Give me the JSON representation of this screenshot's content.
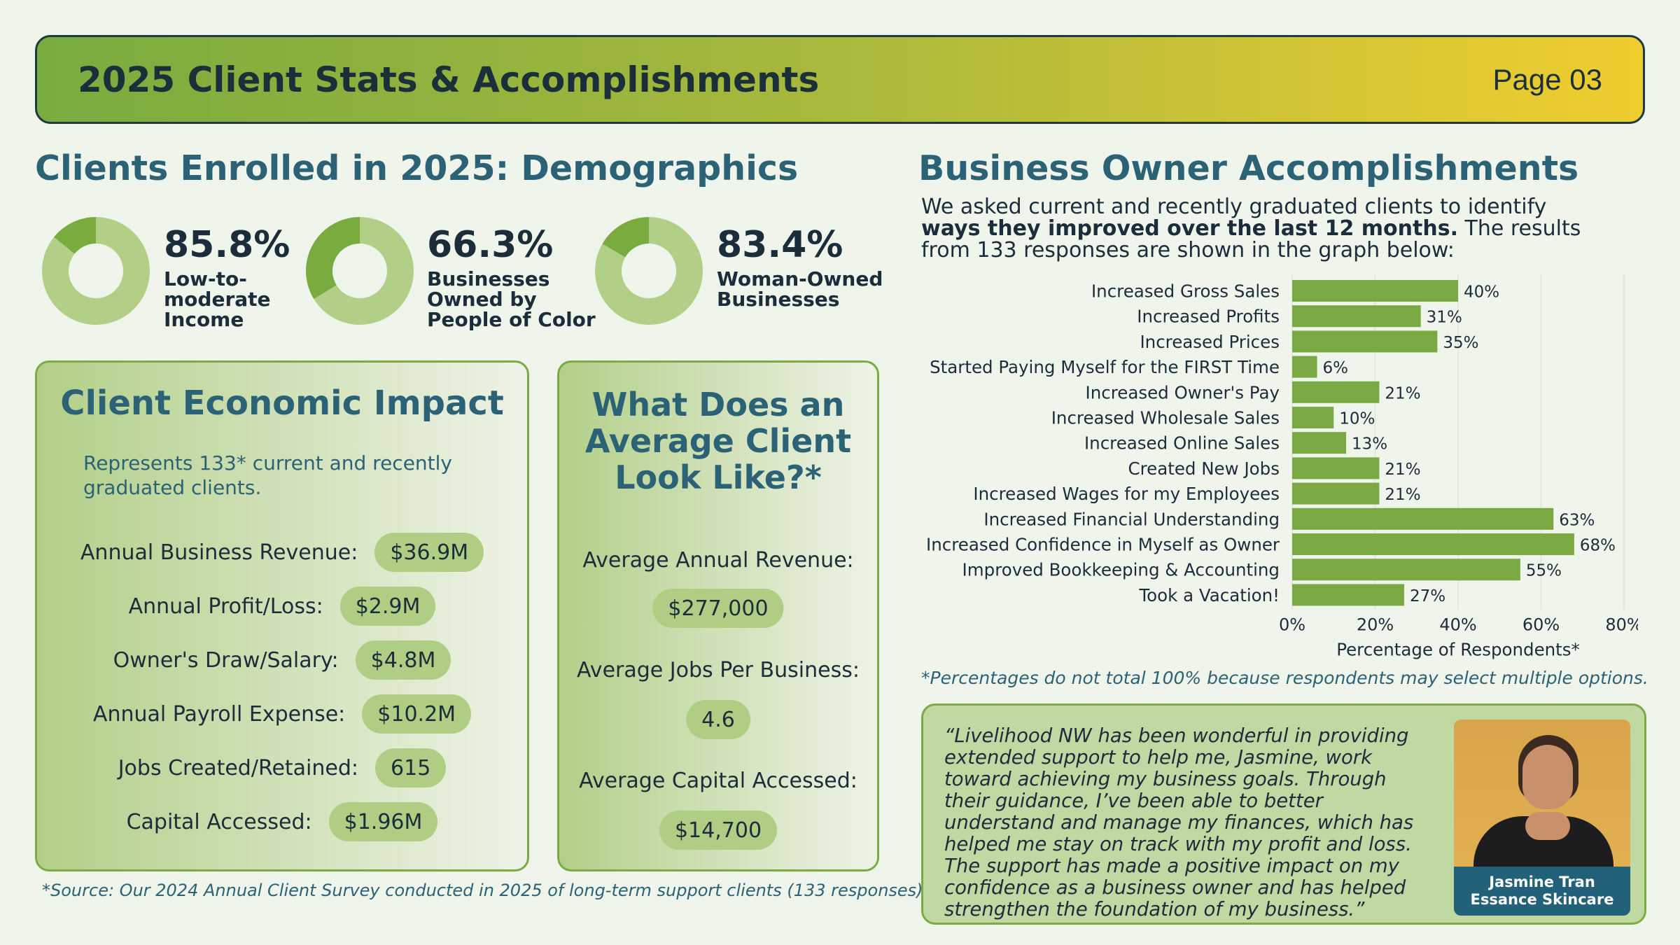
{
  "header": {
    "title": "2025 Client Stats & Accomplishments",
    "page": "Page 03"
  },
  "colors": {
    "dark_green": "#79ab3f",
    "light_green": "#b2cf88",
    "teal": "#2b6276"
  },
  "demographics": {
    "title": "Clients Enrolled in 2025: Demographics",
    "stats": [
      {
        "pct_value": 85.8,
        "pct": "85.8%",
        "label": "Low-to-\nmoderate\nIncome"
      },
      {
        "pct_value": 66.3,
        "pct": "66.3%",
        "label": "Businesses\nOwned by\nPeople of Color"
      },
      {
        "pct_value": 83.4,
        "pct": "83.4%",
        "label": "Woman-Owned\nBusinesses"
      }
    ]
  },
  "impact": {
    "title": "Client Economic Impact",
    "subtitle": "Represents 133* current and recently graduated clients.",
    "rows": [
      {
        "label": "Annual Business Revenue:",
        "value": "$36.9M"
      },
      {
        "label": "Annual Profit/Loss:",
        "value": "$2.9M"
      },
      {
        "label": "Owner's Draw/Salary:",
        "value": "$4.8M"
      },
      {
        "label": "Annual Payroll Expense:",
        "value": "$10.2M"
      },
      {
        "label": "Jobs Created/Retained:",
        "value": "615"
      },
      {
        "label": "Capital Accessed:",
        "value": "$1.96M"
      }
    ]
  },
  "average": {
    "title_lines": [
      "What Does an",
      "Average Client",
      "Look Like?*"
    ],
    "items": [
      {
        "label": "Average Annual Revenue:",
        "value": "$277,000"
      },
      {
        "label": "Average Jobs Per Business:",
        "value": "4.6"
      },
      {
        "label": "Average Capital Accessed:",
        "value": "$14,700"
      }
    ]
  },
  "source_note": "*Source: Our 2024 Annual Client Survey conducted in 2025 of long-term support clients (133 responses)",
  "accomplishments": {
    "title": "Business Owner Accomplishments",
    "intro_pre": "We asked current and recently graduated clients to identify ",
    "intro_bold": "ways they improved over the last 12 months.",
    "intro_post": " The results from 133 responses are shown in the graph below:",
    "footnote": "*Percentages do not total 100% because respondents may select multiple options."
  },
  "chart_data": {
    "type": "bar",
    "orientation": "horizontal",
    "categories": [
      "Increased Gross Sales",
      "Increased Profits",
      "Increased Prices",
      "Started Paying Myself for the FIRST Time",
      "Increased Owner's Pay",
      "Increased Wholesale Sales",
      "Increased Online Sales",
      "Created New Jobs",
      "Increased Wages for my Employees",
      "Increased Financial Understanding",
      "Increased Confidence in Myself as Owner",
      "Improved Bookkeeping & Accounting",
      "Took a Vacation!"
    ],
    "values": [
      40,
      31,
      35,
      6,
      21,
      10,
      13,
      21,
      21,
      63,
      68,
      55,
      27
    ],
    "value_labels": [
      "40%",
      "31%",
      "35%",
      "6%",
      "21%",
      "10%",
      "13%",
      "21%",
      "21%",
      "63%",
      "68%",
      "55%",
      "27%"
    ],
    "xlim": [
      0,
      80
    ],
    "xticks": [
      0,
      20,
      40,
      60,
      80
    ],
    "xtick_labels": [
      "0%",
      "20%",
      "40%",
      "60%",
      "80%"
    ],
    "xlabel": "Percentage of Respondents*",
    "grid": true,
    "bar_color": "#7aa843"
  },
  "testimonial": {
    "quote": "“Livelihood NW has been wonderful in providing extended support to help me, Jasmine, work toward achieving my business goals. Through their guidance, I’ve been able to better understand and manage my finances, which has helped me stay on track with my profit and loss. The support has made a positive impact on my confidence as a business owner and has helped strengthen the foundation of my business.”",
    "name": "Jasmine Tran",
    "business": "Essance Skincare"
  }
}
